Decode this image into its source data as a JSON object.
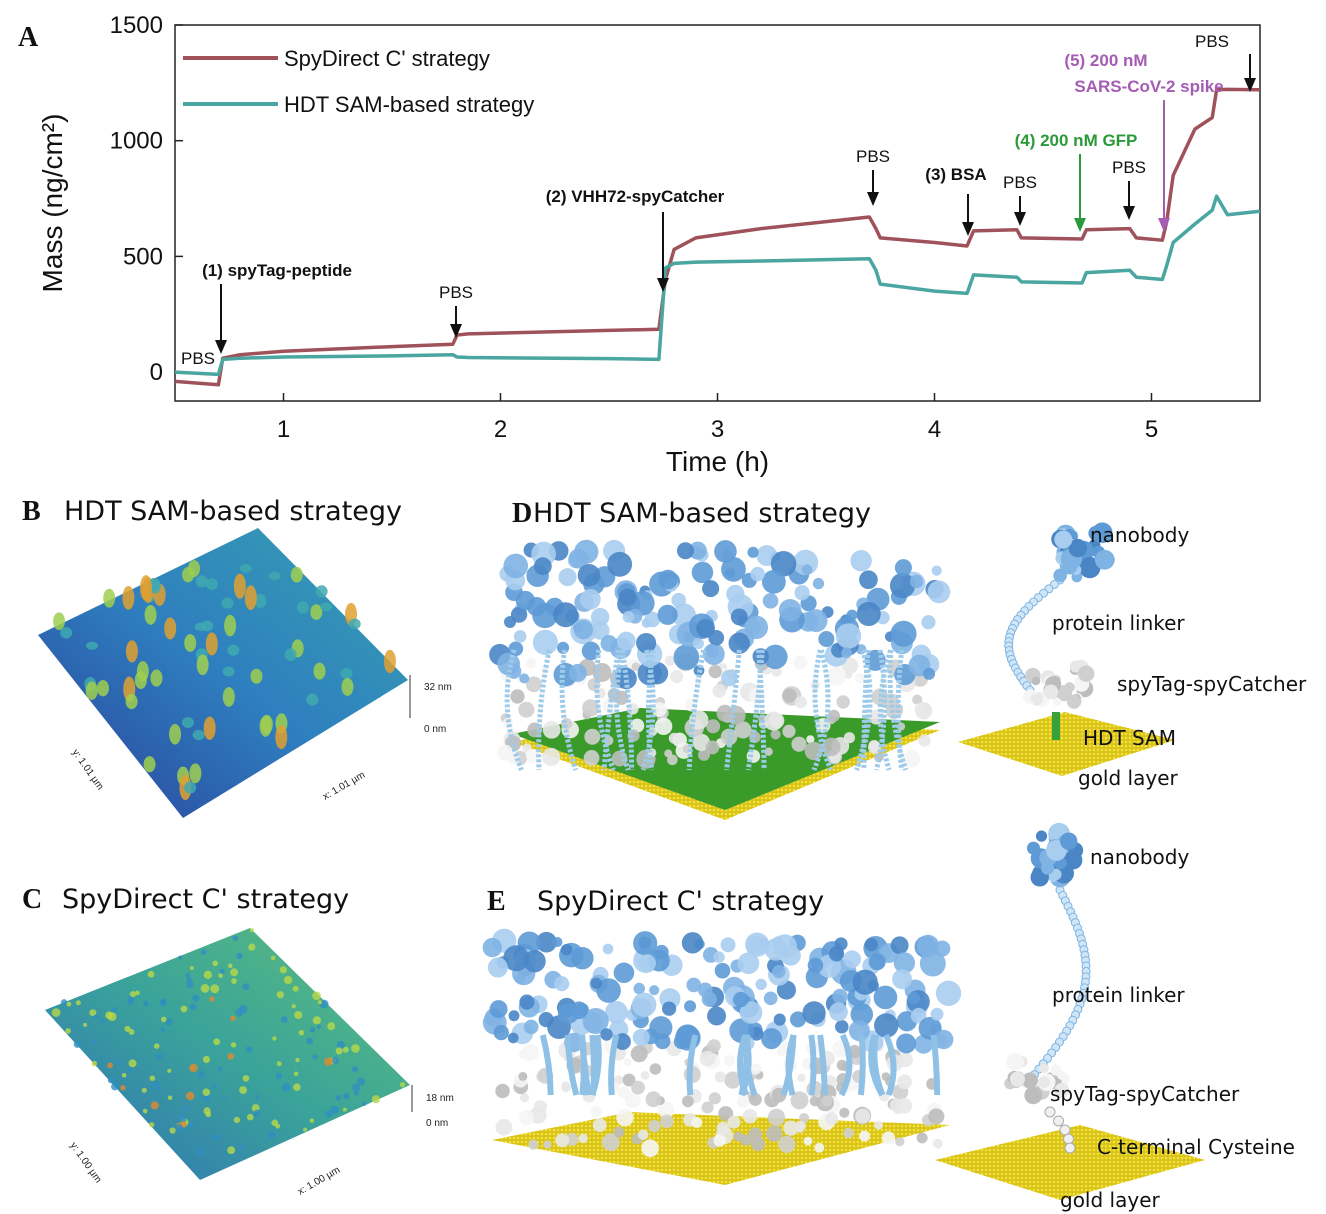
{
  "panel_a": {
    "letter": "A"
  },
  "chart_data": {
    "type": "line",
    "x_label": "Time (h)",
    "y_label": "Mass (ng/cm²)",
    "x": [
      0.5,
      0.7,
      0.72,
      0.8,
      1.0,
      1.5,
      1.78,
      1.8,
      1.85,
      2.5,
      2.73,
      2.76,
      2.8,
      2.9,
      3.2,
      3.7,
      3.73,
      3.75,
      4.0,
      4.15,
      4.18,
      4.38,
      4.4,
      4.68,
      4.7,
      4.9,
      4.93,
      5.05,
      5.07,
      5.1,
      5.2,
      5.28,
      5.3,
      5.35,
      5.5
    ],
    "series": [
      {
        "name": "SpyDirect C' strategy",
        "color": "#a0525a",
        "values": [
          -40,
          -55,
          60,
          75,
          90,
          110,
          120,
          160,
          165,
          180,
          185,
          400,
          530,
          580,
          620,
          670,
          620,
          580,
          560,
          545,
          610,
          615,
          580,
          575,
          615,
          620,
          580,
          570,
          650,
          850,
          1050,
          1100,
          1220,
          1222,
          1220
        ]
      },
      {
        "name": "HDT SAM-based strategy",
        "color": "#4aa6a0",
        "values": [
          0,
          -10,
          55,
          60,
          65,
          70,
          75,
          65,
          63,
          58,
          55,
          450,
          470,
          475,
          480,
          490,
          440,
          380,
          350,
          340,
          420,
          410,
          390,
          385,
          430,
          440,
          410,
          400,
          460,
          560,
          640,
          700,
          760,
          680,
          695
        ]
      }
    ],
    "xlim": [
      0.5,
      5.5
    ],
    "xticks": [
      1,
      2,
      3,
      4,
      5
    ],
    "ylim": [
      -125,
      1500
    ],
    "yticks": [
      0,
      500,
      1000,
      1500
    ],
    "legend": "upper left",
    "annotations": [
      {
        "text": "PBS"
      },
      {
        "text": "(1) spyTag-peptide"
      },
      {
        "text": "PBS"
      },
      {
        "text": "(2) VHH72-spyCatcher"
      },
      {
        "text": "PBS"
      },
      {
        "text": "(3) BSA"
      },
      {
        "text": "PBS"
      },
      {
        "text": "(4) 200 nM GFP",
        "color": "#2a9a3a"
      },
      {
        "text": "PBS"
      },
      {
        "text": "(5) 200 nM",
        "color": "#a45cb4"
      },
      {
        "text": "SARS-CoV-2 spike",
        "color": "#a45cb4"
      },
      {
        "text": "PBS"
      }
    ]
  },
  "panel_b": {
    "letter": "B",
    "title": "HDT SAM-based strategy",
    "z_max": "32 nm",
    "z_min": "0 nm",
    "y_extent": "y: 1.01 µm",
    "x_extent": "x: 1.01 µm"
  },
  "panel_c": {
    "letter": "C",
    "title": "SpyDirect C' strategy",
    "z_max": "18 nm",
    "z_min": "0 nm",
    "y_extent": "y: 1.00 µm",
    "x_extent": "x: 1.00 µm"
  },
  "panel_d": {
    "letter": "D",
    "title": "HDT SAM-based strategy",
    "labels": [
      "nanobody",
      "protein linker",
      "spyTag-spyCatcher",
      "HDT SAM",
      "gold layer"
    ]
  },
  "panel_e": {
    "letter": "E",
    "title": "SpyDirect C' strategy",
    "labels": [
      "nanobody",
      "protein linker",
      "spyTag-spyCatcher",
      "C-terminal Cysteine",
      "gold layer"
    ]
  }
}
